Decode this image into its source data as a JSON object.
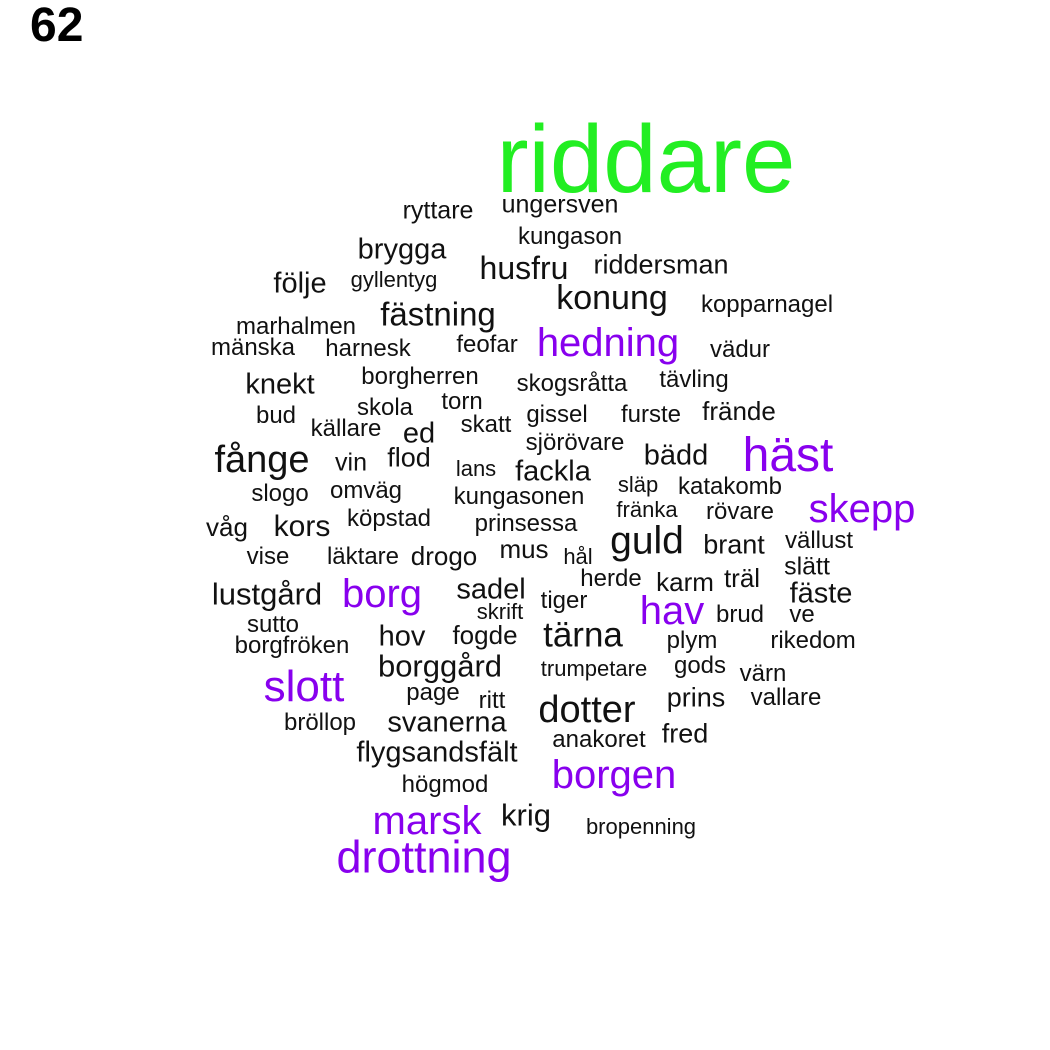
{
  "page_number": "62",
  "colors": {
    "highlight": "#22ee22",
    "accent": "#8800ee",
    "default": "#111111"
  },
  "words": [
    {
      "text": "riddare",
      "style": "highlight"
    },
    {
      "text": "ryttare",
      "style": "default"
    },
    {
      "text": "ungersven",
      "style": "default"
    },
    {
      "text": "kungason",
      "style": "default"
    },
    {
      "text": "brygga",
      "style": "default"
    },
    {
      "text": "husfru",
      "style": "default"
    },
    {
      "text": "riddersman",
      "style": "default"
    },
    {
      "text": "följe",
      "style": "default"
    },
    {
      "text": "gyllentyg",
      "style": "default"
    },
    {
      "text": "konung",
      "style": "default"
    },
    {
      "text": "kopparnagel",
      "style": "default"
    },
    {
      "text": "fästning",
      "style": "default"
    },
    {
      "text": "marhalmen",
      "style": "default"
    },
    {
      "text": "mänska",
      "style": "default"
    },
    {
      "text": "harnesk",
      "style": "default"
    },
    {
      "text": "feofar",
      "style": "default"
    },
    {
      "text": "hedning",
      "style": "accent"
    },
    {
      "text": "vädur",
      "style": "default"
    },
    {
      "text": "knekt",
      "style": "default"
    },
    {
      "text": "borgherren",
      "style": "default"
    },
    {
      "text": "skogsråtta",
      "style": "default"
    },
    {
      "text": "tävling",
      "style": "default"
    },
    {
      "text": "skola",
      "style": "default"
    },
    {
      "text": "torn",
      "style": "default"
    },
    {
      "text": "bud",
      "style": "default"
    },
    {
      "text": "källare",
      "style": "default"
    },
    {
      "text": "ed",
      "style": "default"
    },
    {
      "text": "skatt",
      "style": "default"
    },
    {
      "text": "gissel",
      "style": "default"
    },
    {
      "text": "furste",
      "style": "default"
    },
    {
      "text": "frände",
      "style": "default"
    },
    {
      "text": "sjörövare",
      "style": "default"
    },
    {
      "text": "häst",
      "style": "accent"
    },
    {
      "text": "fånge",
      "style": "default"
    },
    {
      "text": "vin",
      "style": "default"
    },
    {
      "text": "flod",
      "style": "default"
    },
    {
      "text": "lans",
      "style": "default"
    },
    {
      "text": "fackla",
      "style": "default"
    },
    {
      "text": "bädd",
      "style": "default"
    },
    {
      "text": "släp",
      "style": "default"
    },
    {
      "text": "katakomb",
      "style": "default"
    },
    {
      "text": "slogo",
      "style": "default"
    },
    {
      "text": "omväg",
      "style": "default"
    },
    {
      "text": "kungasonen",
      "style": "default"
    },
    {
      "text": "skepp",
      "style": "accent"
    },
    {
      "text": "fränka",
      "style": "default"
    },
    {
      "text": "rövare",
      "style": "default"
    },
    {
      "text": "våg",
      "style": "default"
    },
    {
      "text": "kors",
      "style": "default"
    },
    {
      "text": "köpstad",
      "style": "default"
    },
    {
      "text": "prinsessa",
      "style": "default"
    },
    {
      "text": "guld",
      "style": "default"
    },
    {
      "text": "brant",
      "style": "default"
    },
    {
      "text": "vällust",
      "style": "default"
    },
    {
      "text": "vise",
      "style": "default"
    },
    {
      "text": "läktare",
      "style": "default"
    },
    {
      "text": "drogo",
      "style": "default"
    },
    {
      "text": "mus",
      "style": "default"
    },
    {
      "text": "hål",
      "style": "default"
    },
    {
      "text": "slätt",
      "style": "default"
    },
    {
      "text": "herde",
      "style": "default"
    },
    {
      "text": "karm",
      "style": "default"
    },
    {
      "text": "träl",
      "style": "default"
    },
    {
      "text": "lustgård",
      "style": "default"
    },
    {
      "text": "borg",
      "style": "accent"
    },
    {
      "text": "sadel",
      "style": "default"
    },
    {
      "text": "fäste",
      "style": "default"
    },
    {
      "text": "skrift",
      "style": "default"
    },
    {
      "text": "tiger",
      "style": "default"
    },
    {
      "text": "hav",
      "style": "accent"
    },
    {
      "text": "brud",
      "style": "default"
    },
    {
      "text": "ve",
      "style": "default"
    },
    {
      "text": "sutto",
      "style": "default"
    },
    {
      "text": "fogde",
      "style": "default"
    },
    {
      "text": "tärna",
      "style": "default"
    },
    {
      "text": "borgfröken",
      "style": "default"
    },
    {
      "text": "hov",
      "style": "default"
    },
    {
      "text": "plym",
      "style": "default"
    },
    {
      "text": "rikedom",
      "style": "default"
    },
    {
      "text": "borggård",
      "style": "default"
    },
    {
      "text": "trumpetare",
      "style": "default"
    },
    {
      "text": "gods",
      "style": "default"
    },
    {
      "text": "värn",
      "style": "default"
    },
    {
      "text": "slott",
      "style": "accent"
    },
    {
      "text": "page",
      "style": "default"
    },
    {
      "text": "ritt",
      "style": "default"
    },
    {
      "text": "prins",
      "style": "default"
    },
    {
      "text": "vallare",
      "style": "default"
    },
    {
      "text": "dotter",
      "style": "default"
    },
    {
      "text": "bröllop",
      "style": "default"
    },
    {
      "text": "svanerna",
      "style": "default"
    },
    {
      "text": "fred",
      "style": "default"
    },
    {
      "text": "anakoret",
      "style": "default"
    },
    {
      "text": "flygsandsfält",
      "style": "default"
    },
    {
      "text": "borgen",
      "style": "accent"
    },
    {
      "text": "högmod",
      "style": "default"
    },
    {
      "text": "marsk",
      "style": "accent"
    },
    {
      "text": "krig",
      "style": "default"
    },
    {
      "text": "bropenning",
      "style": "default"
    },
    {
      "text": "drottning",
      "style": "accent"
    }
  ]
}
